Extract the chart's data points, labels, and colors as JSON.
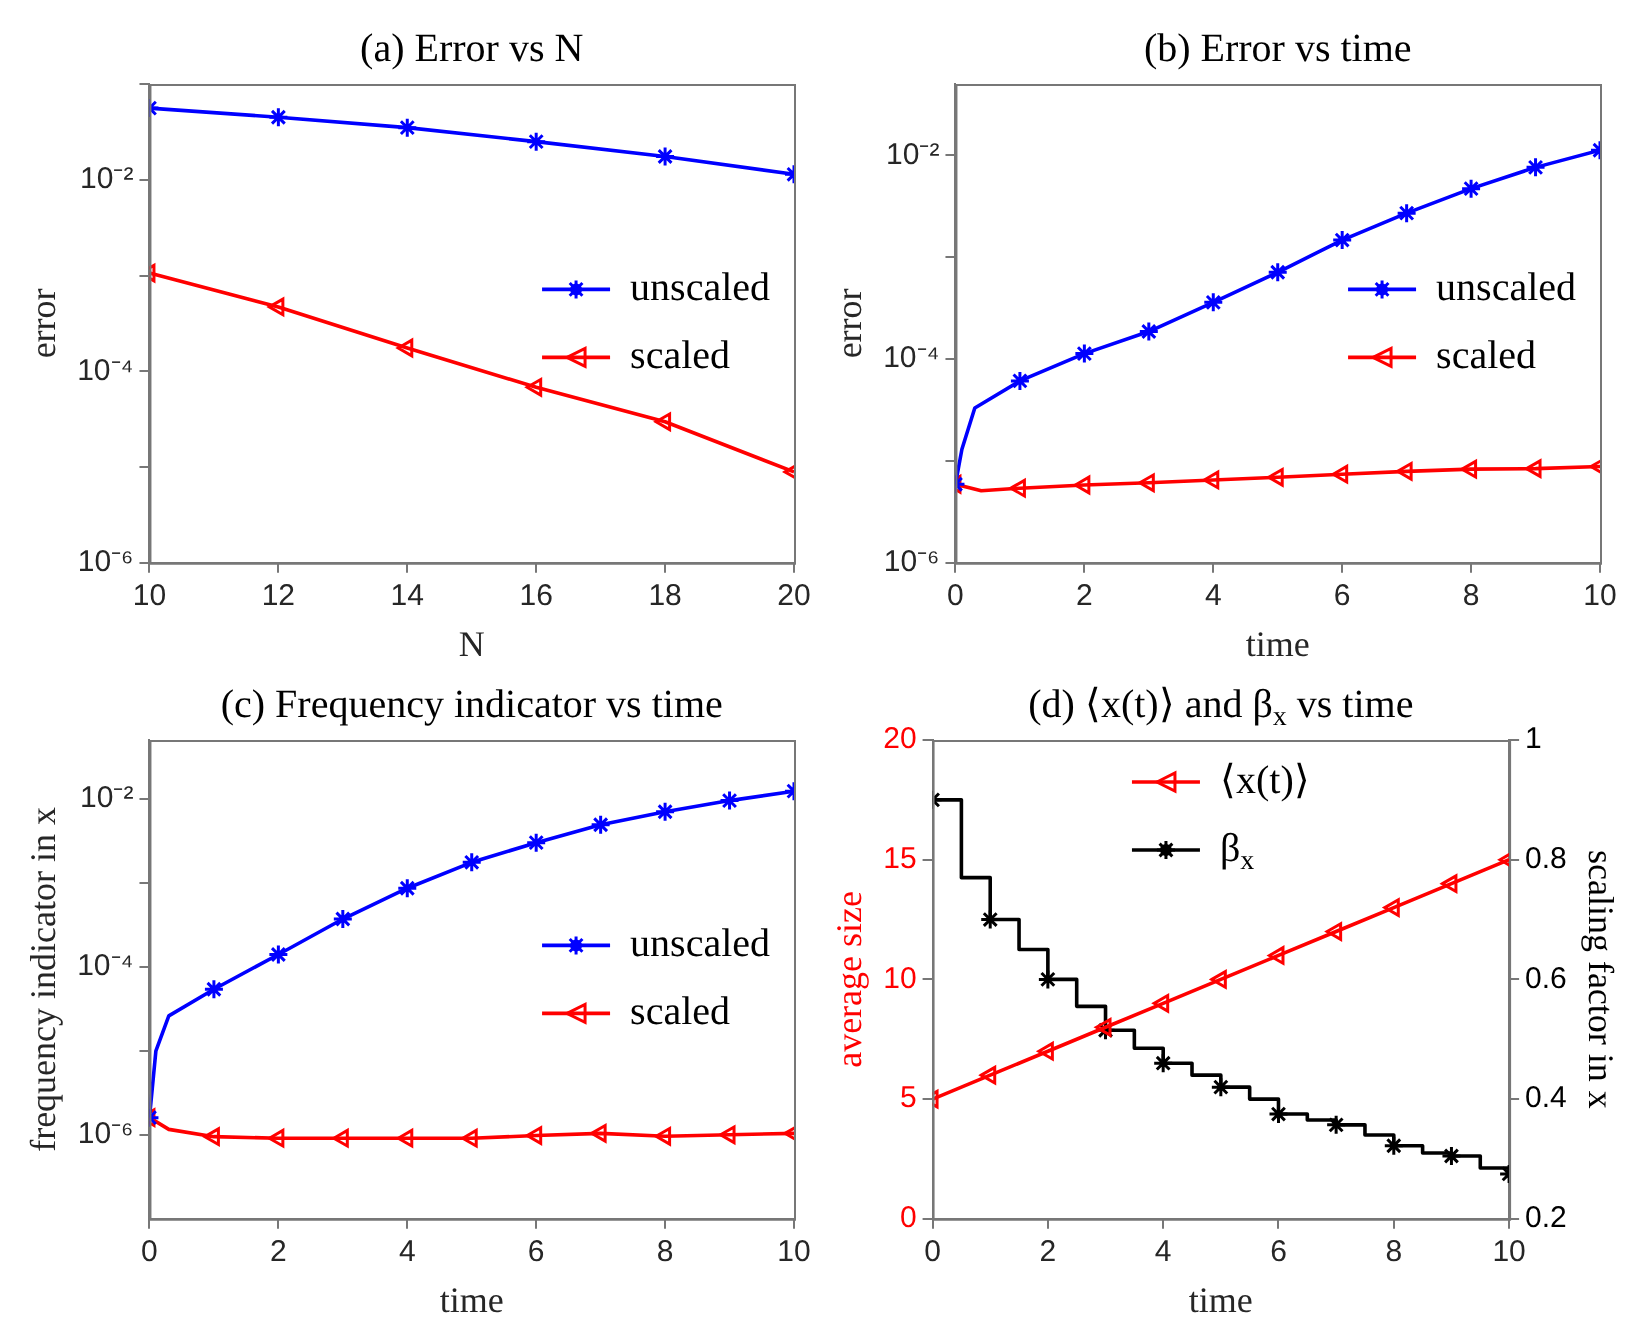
{
  "chart_data": [
    {
      "type": "line",
      "title": "(a) Error vs N",
      "xlabel": "N",
      "ylabel": "error",
      "x": [
        10,
        12,
        14,
        16,
        18,
        20
      ],
      "xlim": [
        10,
        20
      ],
      "xticks": [
        10,
        12,
        14,
        16,
        18,
        20
      ],
      "ylim": [
        1e-06,
        0.1
      ],
      "yticks": [
        {
          "value": 1e-06,
          "label": "10⁻⁶"
        },
        {
          "value": 1e-05,
          "label": null
        },
        {
          "value": 0.0001,
          "label": "10⁻⁴"
        },
        {
          "value": 0.001,
          "label": null
        },
        {
          "value": 0.01,
          "label": "10⁻²"
        },
        {
          "value": 0.1,
          "label": null
        }
      ],
      "log": "y",
      "grid": false,
      "legend": "right",
      "series": [
        {
          "name": "unscaled",
          "color": "#0000ff",
          "marker": "cross",
          "values": [
            0.056,
            0.045,
            0.035,
            0.025,
            0.0175,
            0.0114
          ]
        },
        {
          "name": "scaled",
          "color": "#ff0000",
          "marker": "triangle",
          "values": [
            0.00106,
            0.00047,
            0.000175,
            6.8e-05,
            2.97e-05,
            8.9e-06
          ]
        }
      ]
    },
    {
      "type": "line",
      "title": "(b) Error vs time",
      "xlabel": "time",
      "ylabel": "error",
      "xlim": [
        0,
        10
      ],
      "xticks": [
        0,
        2,
        4,
        6,
        8,
        10
      ],
      "ylim": [
        1e-06,
        0.05
      ],
      "yticks": [
        {
          "value": 1e-06,
          "label": "10⁻⁶"
        },
        {
          "value": 1e-05,
          "label": null
        },
        {
          "value": 0.0001,
          "label": "10⁻⁴"
        },
        {
          "value": 0.001,
          "label": null
        },
        {
          "value": 0.01,
          "label": "10⁻²"
        }
      ],
      "log": "y",
      "grid": false,
      "legend": "right",
      "series": [
        {
          "name": "unscaled",
          "color": "#0000ff",
          "marker": "cross",
          "x": [
            0,
            0.1,
            0.3,
            1,
            2,
            3,
            4,
            5,
            6,
            7,
            8,
            9,
            10
          ],
          "values": [
            5.9e-06,
            1.3e-05,
            3.3e-05,
            6.1e-05,
            0.000113,
            0.000186,
            0.00036,
            0.00071,
            0.00147,
            0.0027,
            0.0047,
            0.0076,
            0.0112
          ]
        },
        {
          "name": "scaled",
          "color": "#ff0000",
          "marker": "triangle",
          "x": [
            0,
            0.4,
            1,
            2,
            3,
            4,
            5,
            6,
            7,
            8,
            9,
            10
          ],
          "values": [
            5.9e-06,
            5.1e-06,
            5.4e-06,
            5.8e-06,
            6.1e-06,
            6.5e-06,
            6.9e-06,
            7.4e-06,
            7.9e-06,
            8.3e-06,
            8.4e-06,
            8.8e-06
          ]
        }
      ]
    },
    {
      "type": "line",
      "title": "(c) Frequency indicator vs time",
      "xlabel": "time",
      "ylabel": "frequency indicator in x",
      "xlim": [
        0,
        10
      ],
      "xticks": [
        0,
        2,
        4,
        6,
        8,
        10
      ],
      "ylim": [
        1e-07,
        0.05
      ],
      "yticks": [
        {
          "value": 1e-06,
          "label": "10⁻⁶"
        },
        {
          "value": 1e-05,
          "label": null
        },
        {
          "value": 0.0001,
          "label": "10⁻⁴"
        },
        {
          "value": 0.001,
          "label": null
        },
        {
          "value": 0.01,
          "label": "10⁻²"
        }
      ],
      "log": "y",
      "grid": false,
      "legend": "right",
      "series": [
        {
          "name": "unscaled",
          "color": "#0000ff",
          "marker": "cross",
          "x": [
            0,
            0.1,
            0.3,
            1,
            2,
            3,
            4,
            5,
            6,
            7,
            8,
            9,
            10
          ],
          "values": [
            1.6e-06,
            1e-05,
            2.6e-05,
            5.4e-05,
            0.00014,
            0.00037,
            0.00086,
            0.00175,
            0.003,
            0.0049,
            0.007,
            0.0095,
            0.0123
          ]
        },
        {
          "name": "scaled",
          "color": "#ff0000",
          "marker": "triangle",
          "x": [
            0,
            0.3,
            1,
            2,
            3,
            4,
            5,
            6,
            7,
            8,
            9,
            10
          ],
          "values": [
            1.6e-06,
            1.16e-06,
            9.5e-07,
            9.1e-07,
            9.1e-07,
            9.1e-07,
            9.1e-07,
            9.8e-07,
            1.04e-06,
            9.6e-07,
            1e-06,
            1.04e-06
          ]
        }
      ]
    },
    {
      "type": "line",
      "title": "(d) ⟨x(t)⟩ and β$_{x}$ vs time",
      "xlabel": "time",
      "ylabel": "average size",
      "y2label": "scaling factor in x",
      "xlim": [
        0,
        10
      ],
      "xticks": [
        0,
        2,
        4,
        6,
        8,
        10
      ],
      "ylim": [
        0,
        20
      ],
      "yticks": [
        0,
        5,
        10,
        15,
        20
      ],
      "y2lim": [
        0.2,
        1
      ],
      "y2ticks": [
        0.2,
        0.4,
        0.6,
        0.8,
        1
      ],
      "grid": false,
      "legend": "top",
      "series": [
        {
          "name": "⟨x(t)⟩",
          "color": "#ff0000",
          "marker": "triangle",
          "x": [
            0,
            1,
            2,
            3,
            4,
            5,
            6,
            7,
            8,
            9,
            10
          ],
          "values": [
            5,
            6,
            7,
            8,
            9,
            10,
            11,
            12,
            13,
            14,
            15
          ]
        },
        {
          "name": "β$_{x}$",
          "type": "step",
          "axis": "y2",
          "color": "#000000",
          "marker": "cross",
          "x": [
            0,
            0.5,
            1,
            1.5,
            2,
            2.5,
            3,
            3.5,
            4,
            4.5,
            5,
            5.5,
            6,
            6.5,
            7,
            7.5,
            8,
            8.5,
            9,
            9.5,
            10
          ],
          "values": [
            0.9,
            0.77,
            0.7,
            0.65,
            0.6,
            0.555,
            0.515,
            0.485,
            0.46,
            0.44,
            0.42,
            0.4,
            0.375,
            0.365,
            0.357,
            0.34,
            0.322,
            0.31,
            0.305,
            0.285,
            0.275
          ]
        }
      ]
    }
  ]
}
